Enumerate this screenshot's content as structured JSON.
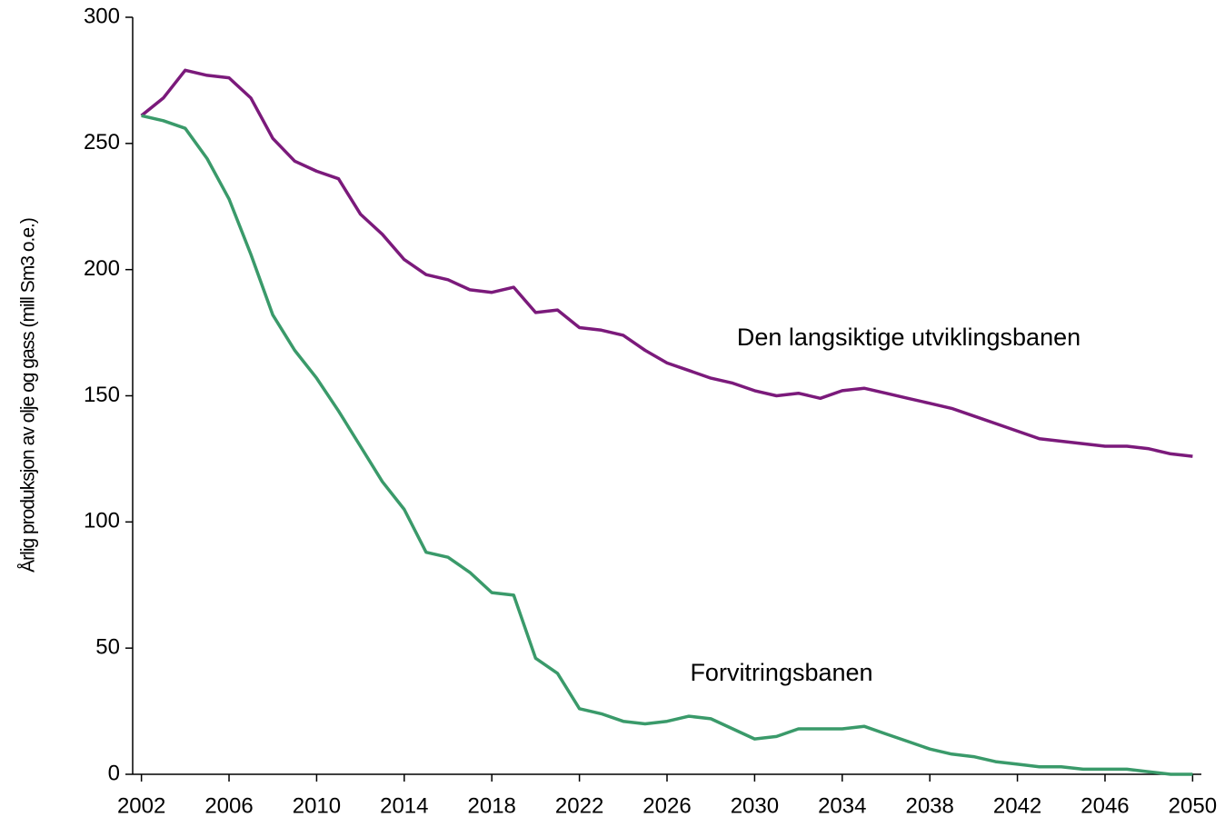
{
  "chart_data": {
    "type": "line",
    "ylabel": "Årlig produksjon av olje og gass (mill Sm3 o.e.)",
    "x": [
      2002,
      2003,
      2004,
      2005,
      2006,
      2007,
      2008,
      2009,
      2010,
      2011,
      2012,
      2013,
      2014,
      2015,
      2016,
      2017,
      2018,
      2019,
      2020,
      2021,
      2022,
      2023,
      2024,
      2025,
      2026,
      2027,
      2028,
      2029,
      2030,
      2031,
      2032,
      2033,
      2034,
      2035,
      2036,
      2037,
      2038,
      2039,
      2040,
      2041,
      2042,
      2043,
      2044,
      2045,
      2046,
      2047,
      2048,
      2049,
      2050
    ],
    "series": [
      {
        "name": "Den langsiktige utviklingsbanen",
        "color": "#7b1a7b",
        "values": [
          261,
          268,
          279,
          277,
          276,
          268,
          252,
          243,
          239,
          236,
          222,
          214,
          204,
          198,
          196,
          192,
          191,
          193,
          183,
          184,
          177,
          176,
          174,
          168,
          163,
          160,
          157,
          155,
          152,
          150,
          151,
          149,
          152,
          153,
          151,
          149,
          147,
          145,
          142,
          139,
          136,
          133,
          132,
          131,
          130,
          130,
          129,
          127,
          126
        ]
      },
      {
        "name": "Forvitringsbanen",
        "color": "#3a9a6a",
        "values": [
          261,
          259,
          256,
          244,
          228,
          206,
          182,
          168,
          157,
          144,
          130,
          116,
          105,
          88,
          86,
          80,
          72,
          71,
          46,
          40,
          26,
          24,
          21,
          20,
          21,
          23,
          22,
          18,
          14,
          15,
          18,
          18,
          18,
          19,
          16,
          13,
          10,
          8,
          7,
          5,
          4,
          3,
          3,
          2,
          2,
          2,
          1,
          0,
          0
        ]
      }
    ],
    "xlim": [
      2001.6,
      2050.4
    ],
    "xticks": [
      2002,
      2006,
      2010,
      2014,
      2018,
      2022,
      2026,
      2030,
      2034,
      2038,
      2042,
      2046,
      2050
    ],
    "ylim": [
      0,
      300
    ],
    "yticks": [
      0,
      50,
      100,
      150,
      200,
      250,
      300
    ],
    "grid": false
  }
}
